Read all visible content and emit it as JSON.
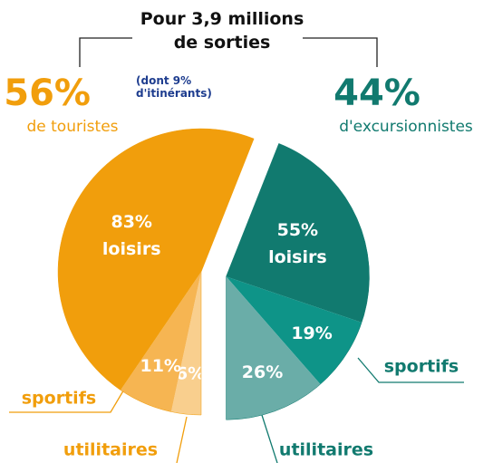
{
  "chart_data": {
    "type": "pie",
    "title": "Pour 3,9 millions de sorties",
    "groups": [
      {
        "name": "de touristes",
        "value": 56,
        "value_label": "56%",
        "note": "(dont 9% d'itinérants)",
        "color": "#f19e0c",
        "categories": [
          "utilitaires",
          "sportifs",
          "loisirs"
        ],
        "values": [
          6,
          11,
          83
        ],
        "value_labels": [
          "6%",
          "11%",
          "83%"
        ],
        "colors": [
          "#f9cf8e",
          "#f6b552",
          "#f19e0c"
        ]
      },
      {
        "name": "d'excursionnistes",
        "value": 44,
        "value_label": "44%",
        "color": "#117a6f",
        "categories": [
          "loisirs",
          "sportifs",
          "utilitaires"
        ],
        "values": [
          55,
          19,
          26
        ],
        "value_labels": [
          "55%",
          "19%",
          "26%"
        ],
        "colors": [
          "#117a6f",
          "#0e9488",
          "#6aada8"
        ]
      }
    ]
  }
}
